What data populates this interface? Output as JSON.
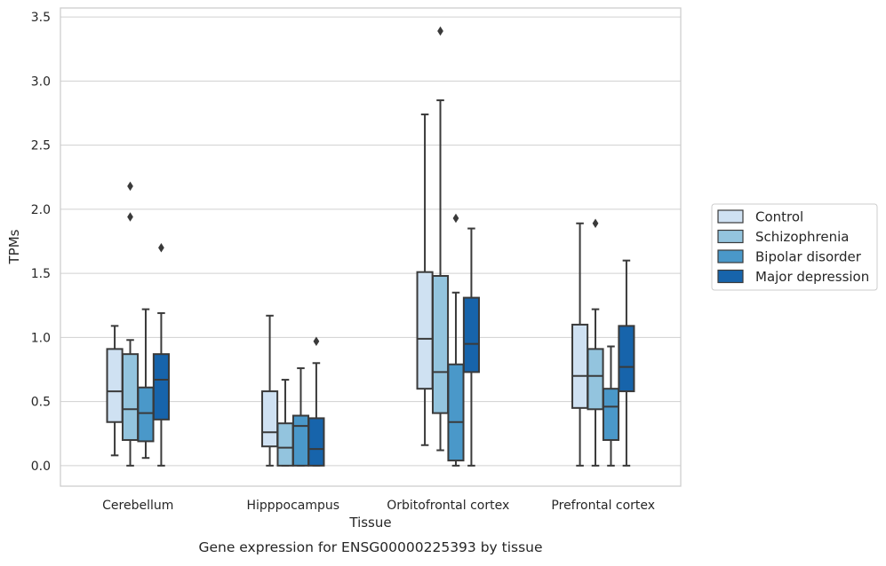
{
  "caption": "Gene expression for ENSG00000225393 by tissue",
  "chart_data": {
    "type": "box",
    "xlabel": "Tissue",
    "ylabel": "TPMs",
    "ylim": [
      -0.16,
      3.57
    ],
    "yticks": [
      0.0,
      0.5,
      1.0,
      1.5,
      2.0,
      2.5,
      3.0,
      3.5
    ],
    "ytick_labels": [
      "0.0",
      "0.5",
      "1.0",
      "1.5",
      "2.0",
      "2.5",
      "3.0",
      "3.5"
    ],
    "grid": "horizontal",
    "legend_position": "right",
    "categories": [
      "Cerebellum",
      "Hipppocampus",
      "Orbitofrontal cortex",
      "Prefrontal cortex"
    ],
    "series": [
      {
        "name": "Control",
        "color": "#cfe1f2",
        "boxes": [
          {
            "whislo": 0.08,
            "q1": 0.34,
            "med": 0.58,
            "q3": 0.91,
            "whishi": 1.09,
            "fliers": []
          },
          {
            "whislo": 0.0,
            "q1": 0.15,
            "med": 0.26,
            "q3": 0.58,
            "whishi": 1.17,
            "fliers": []
          },
          {
            "whislo": 0.16,
            "q1": 0.6,
            "med": 0.99,
            "q3": 1.51,
            "whishi": 2.74,
            "fliers": []
          },
          {
            "whislo": 0.0,
            "q1": 0.45,
            "med": 0.7,
            "q3": 1.1,
            "whishi": 1.89,
            "fliers": []
          }
        ]
      },
      {
        "name": "Schizophrenia",
        "color": "#93c4de",
        "boxes": [
          {
            "whislo": 0.0,
            "q1": 0.2,
            "med": 0.44,
            "q3": 0.87,
            "whishi": 0.98,
            "fliers": [
              1.94,
              2.18
            ]
          },
          {
            "whislo": 0.0,
            "q1": 0.0,
            "med": 0.14,
            "q3": 0.33,
            "whishi": 0.67,
            "fliers": []
          },
          {
            "whislo": 0.12,
            "q1": 0.41,
            "med": 0.73,
            "q3": 1.48,
            "whishi": 2.85,
            "fliers": [
              3.39
            ]
          },
          {
            "whislo": 0.0,
            "q1": 0.44,
            "med": 0.7,
            "q3": 0.91,
            "whishi": 1.22,
            "fliers": [
              1.89
            ]
          }
        ]
      },
      {
        "name": "Bipolar disorder",
        "color": "#4a98c9",
        "boxes": [
          {
            "whislo": 0.06,
            "q1": 0.19,
            "med": 0.41,
            "q3": 0.61,
            "whishi": 1.22,
            "fliers": []
          },
          {
            "whislo": 0.0,
            "q1": 0.0,
            "med": 0.31,
            "q3": 0.39,
            "whishi": 0.76,
            "fliers": []
          },
          {
            "whislo": 0.0,
            "q1": 0.04,
            "med": 0.34,
            "q3": 0.79,
            "whishi": 1.35,
            "fliers": [
              1.93
            ]
          },
          {
            "whislo": 0.0,
            "q1": 0.2,
            "med": 0.46,
            "q3": 0.6,
            "whishi": 0.93,
            "fliers": []
          }
        ]
      },
      {
        "name": "Major depression",
        "color": "#1764ab",
        "boxes": [
          {
            "whislo": 0.0,
            "q1": 0.36,
            "med": 0.67,
            "q3": 0.87,
            "whishi": 1.19,
            "fliers": [
              1.7
            ]
          },
          {
            "whislo": 0.0,
            "q1": 0.0,
            "med": 0.13,
            "q3": 0.37,
            "whishi": 0.8,
            "fliers": [
              0.97
            ]
          },
          {
            "whislo": 0.0,
            "q1": 0.73,
            "med": 0.95,
            "q3": 1.31,
            "whishi": 1.85,
            "fliers": []
          },
          {
            "whislo": 0.0,
            "q1": 0.58,
            "med": 0.77,
            "q3": 1.09,
            "whishi": 1.6,
            "fliers": []
          }
        ]
      }
    ]
  }
}
